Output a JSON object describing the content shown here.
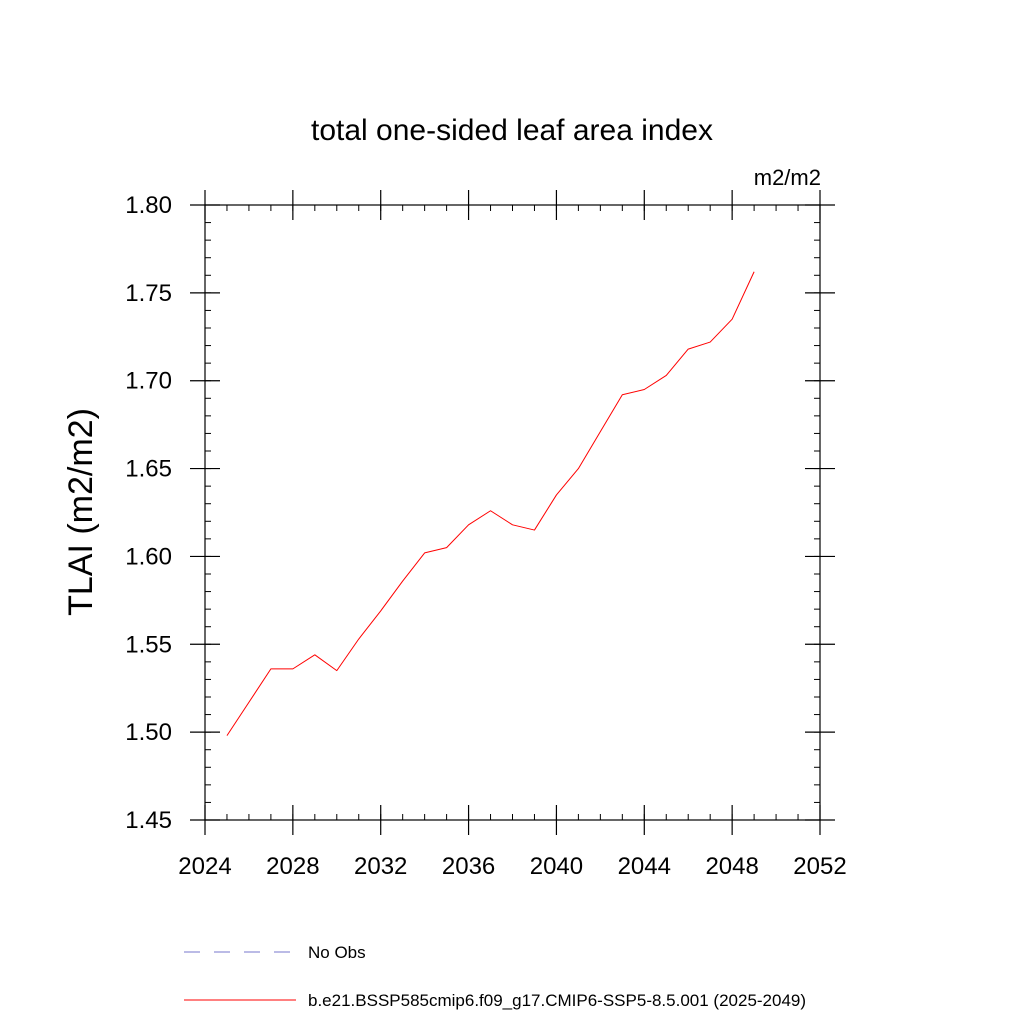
{
  "chart_data": {
    "type": "line",
    "title": "total one-sided leaf area index",
    "units_label": "m2/m2",
    "ylabel": "TLAI  (m2/m2)",
    "xlabel": "",
    "xlim": [
      2024,
      2052
    ],
    "ylim": [
      1.45,
      1.8
    ],
    "x_ticks": [
      2024,
      2028,
      2032,
      2036,
      2040,
      2044,
      2048,
      2052
    ],
    "y_ticks": [
      1.45,
      1.5,
      1.55,
      1.6,
      1.65,
      1.7,
      1.75,
      1.8
    ],
    "x_tick_labels": [
      "2024",
      "2028",
      "2032",
      "2036",
      "2040",
      "2044",
      "2048",
      "2052"
    ],
    "y_tick_labels": [
      "1.45",
      "1.50",
      "1.55",
      "1.60",
      "1.65",
      "1.70",
      "1.75",
      "1.80"
    ],
    "x_minor_step": 1,
    "y_minor_step": 0.01,
    "grid": false,
    "series": [
      {
        "name": "b.e21.BSSP585cmip6.f09_g17.CMIP6-SSP5-8.5.001 (2025-2049)",
        "color": "#ff0000",
        "x": [
          2025,
          2026,
          2027,
          2028,
          2029,
          2030,
          2031,
          2032,
          2033,
          2034,
          2035,
          2036,
          2037,
          2038,
          2039,
          2040,
          2041,
          2042,
          2043,
          2044,
          2045,
          2046,
          2047,
          2048,
          2049
        ],
        "y": [
          1.498,
          1.517,
          1.536,
          1.536,
          1.544,
          1.535,
          1.553,
          1.569,
          1.586,
          1.602,
          1.605,
          1.618,
          1.626,
          1.618,
          1.615,
          1.635,
          1.65,
          1.671,
          1.692,
          1.695,
          1.703,
          1.718,
          1.722,
          1.735,
          1.762
        ]
      }
    ],
    "legend": {
      "placement": "bottom-left",
      "entries": [
        {
          "label": "No Obs",
          "color": "#7777cc",
          "style": "dashed"
        },
        {
          "label": "b.e21.BSSP585cmip6.f09_g17.CMIP6-SSP5-8.5.001 (2025-2049)",
          "color": "#ff0000",
          "style": "solid"
        }
      ]
    }
  }
}
